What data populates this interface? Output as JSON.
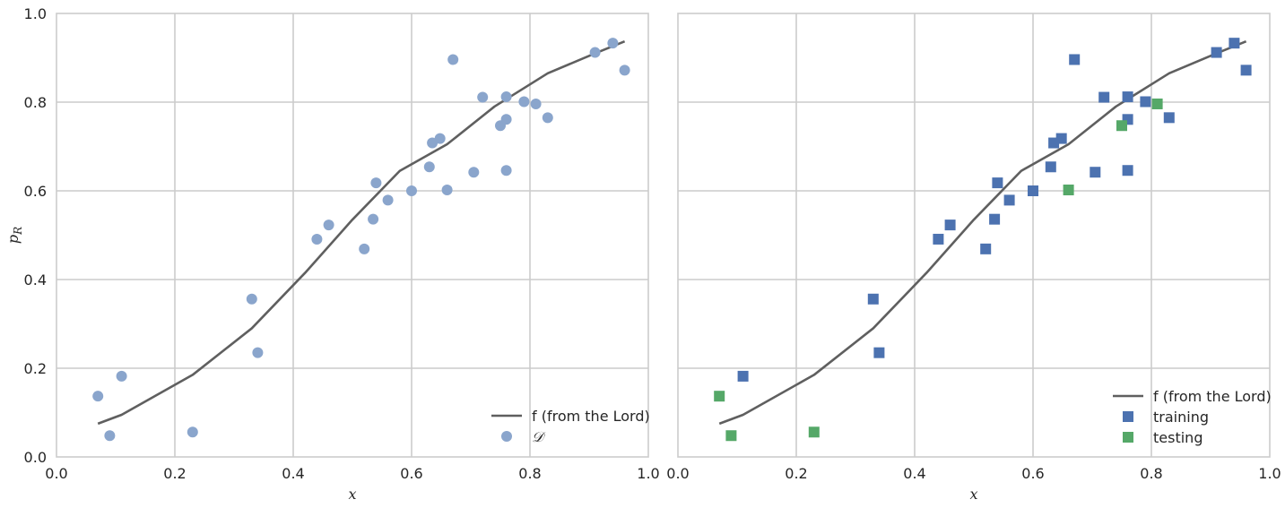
{
  "chart_data": [
    {
      "type": "scatter",
      "title": "",
      "xlabel": "x",
      "ylabel": "p_R",
      "xlim": [
        0.0,
        1.0
      ],
      "ylim": [
        0.0,
        1.0
      ],
      "xticks": [
        "0.0",
        "0.2",
        "0.4",
        "0.6",
        "0.8",
        "1.0"
      ],
      "yticks": [
        "0.0",
        "0.2",
        "0.4",
        "0.6",
        "0.8",
        "1.0"
      ],
      "grid": true,
      "legend_position": "lower-right",
      "curve": {
        "name": "f (from the Lord)",
        "color": "#5f5f5f",
        "x": [
          0.07,
          0.11,
          0.23,
          0.33,
          0.42,
          0.5,
          0.58,
          0.66,
          0.74,
          0.8,
          0.83,
          0.91,
          0.96
        ],
        "y": [
          0.075,
          0.095,
          0.185,
          0.29,
          0.415,
          0.535,
          0.645,
          0.705,
          0.79,
          0.84,
          0.865,
          0.91,
          0.937
        ]
      },
      "series": [
        {
          "name": "𝒟",
          "color": "#8aa5cc",
          "marker": "circle",
          "points": [
            [
              0.07,
              0.137
            ],
            [
              0.09,
              0.048
            ],
            [
              0.11,
              0.182
            ],
            [
              0.23,
              0.056
            ],
            [
              0.33,
              0.356
            ],
            [
              0.34,
              0.235
            ],
            [
              0.44,
              0.491
            ],
            [
              0.46,
              0.523
            ],
            [
              0.52,
              0.469
            ],
            [
              0.535,
              0.536
            ],
            [
              0.54,
              0.618
            ],
            [
              0.56,
              0.579
            ],
            [
              0.6,
              0.6
            ],
            [
              0.63,
              0.654
            ],
            [
              0.635,
              0.708
            ],
            [
              0.648,
              0.718
            ],
            [
              0.66,
              0.602
            ],
            [
              0.67,
              0.896
            ],
            [
              0.705,
              0.642
            ],
            [
              0.72,
              0.811
            ],
            [
              0.75,
              0.747
            ],
            [
              0.76,
              0.812
            ],
            [
              0.76,
              0.646
            ],
            [
              0.76,
              0.761
            ],
            [
              0.79,
              0.801
            ],
            [
              0.81,
              0.796
            ],
            [
              0.83,
              0.765
            ],
            [
              0.91,
              0.912
            ],
            [
              0.94,
              0.933
            ],
            [
              0.96,
              0.872
            ]
          ]
        }
      ]
    },
    {
      "type": "scatter",
      "title": "",
      "xlabel": "x",
      "ylabel": "",
      "xlim": [
        0.0,
        1.0
      ],
      "ylim": [
        0.0,
        1.0
      ],
      "xticks": [
        "0.0",
        "0.2",
        "0.4",
        "0.6",
        "0.8",
        "1.0"
      ],
      "grid": true,
      "legend_position": "lower-right",
      "curve": {
        "name": "f (from the Lord)",
        "color": "#5f5f5f",
        "x": [
          0.07,
          0.11,
          0.23,
          0.33,
          0.42,
          0.5,
          0.58,
          0.66,
          0.74,
          0.8,
          0.83,
          0.91,
          0.96
        ],
        "y": [
          0.075,
          0.095,
          0.185,
          0.29,
          0.415,
          0.535,
          0.645,
          0.705,
          0.79,
          0.84,
          0.865,
          0.91,
          0.937
        ]
      },
      "series": [
        {
          "name": "training",
          "color": "#4c72b0",
          "marker": "square",
          "points": [
            [
              0.11,
              0.182
            ],
            [
              0.33,
              0.356
            ],
            [
              0.34,
              0.235
            ],
            [
              0.44,
              0.491
            ],
            [
              0.46,
              0.523
            ],
            [
              0.52,
              0.469
            ],
            [
              0.535,
              0.536
            ],
            [
              0.54,
              0.618
            ],
            [
              0.56,
              0.579
            ],
            [
              0.6,
              0.6
            ],
            [
              0.63,
              0.654
            ],
            [
              0.635,
              0.708
            ],
            [
              0.648,
              0.718
            ],
            [
              0.67,
              0.896
            ],
            [
              0.705,
              0.642
            ],
            [
              0.72,
              0.811
            ],
            [
              0.76,
              0.812
            ],
            [
              0.76,
              0.646
            ],
            [
              0.76,
              0.761
            ],
            [
              0.79,
              0.801
            ],
            [
              0.83,
              0.765
            ],
            [
              0.91,
              0.912
            ],
            [
              0.94,
              0.933
            ],
            [
              0.96,
              0.872
            ]
          ]
        },
        {
          "name": "testing",
          "color": "#55a868",
          "marker": "square",
          "points": [
            [
              0.07,
              0.137
            ],
            [
              0.09,
              0.048
            ],
            [
              0.23,
              0.056
            ],
            [
              0.66,
              0.602
            ],
            [
              0.75,
              0.747
            ],
            [
              0.81,
              0.796
            ]
          ]
        }
      ]
    }
  ]
}
